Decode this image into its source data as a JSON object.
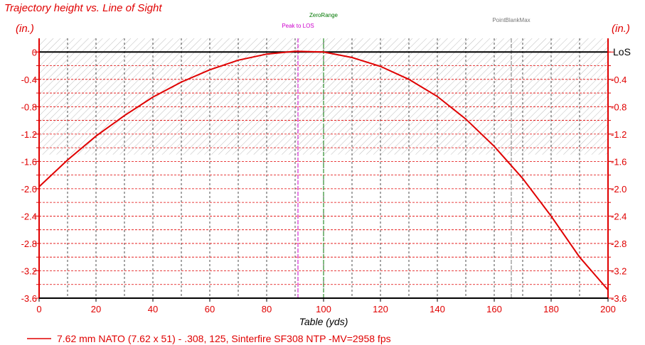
{
  "chart_data": {
    "type": "line",
    "title": "Trajectory height vs. Line of Sight",
    "ylabel_left": "(in.)",
    "ylabel_right": "(in.)",
    "xlabel": "Table (yds)",
    "los_label": "LoS",
    "xlim": [
      0,
      200
    ],
    "ylim": [
      -3.6,
      0.2
    ],
    "x_ticks": [
      0,
      20,
      40,
      60,
      80,
      100,
      120,
      140,
      160,
      180,
      200
    ],
    "y_ticks": [
      "0",
      "-0.4",
      "-0.8",
      "-1.2",
      "-1.6",
      "-2.0",
      "-2.4",
      "-2.8",
      "-3.2",
      "-3.6"
    ],
    "y_tick_values": [
      0,
      -0.4,
      -0.8,
      -1.2,
      -1.6,
      -2.0,
      -2.4,
      -2.8,
      -3.2,
      -3.6
    ],
    "grid": true,
    "pbr_band": [
      -1.5,
      0.2
    ],
    "markers": [
      {
        "label": "Peak to LOS",
        "x": 91,
        "color": "#cc00cc"
      },
      {
        "label": "ZeroRange",
        "x": 100,
        "color": "#007700"
      },
      {
        "label": "PointBlankMax",
        "x": 166,
        "color": "#777777"
      }
    ],
    "series": [
      {
        "name": "7.62 mm NATO (7.62 x 51) - .308, 125, Sinterfire SF308 NTP -MV=2958 fps",
        "color": "#e00000",
        "x": [
          0,
          10,
          20,
          30,
          40,
          50,
          60,
          70,
          80,
          90,
          100,
          110,
          120,
          130,
          140,
          150,
          160,
          170,
          180,
          190,
          200
        ],
        "y": [
          -1.97,
          -1.58,
          -1.23,
          -0.93,
          -0.66,
          -0.44,
          -0.26,
          -0.12,
          -0.03,
          0.01,
          0.0,
          -0.08,
          -0.21,
          -0.4,
          -0.65,
          -0.98,
          -1.38,
          -1.85,
          -2.4,
          -3.0,
          -3.48
        ]
      }
    ]
  }
}
